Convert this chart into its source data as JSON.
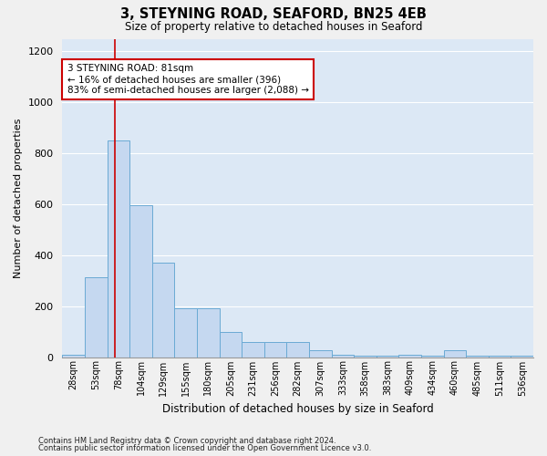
{
  "title": "3, STEYNING ROAD, SEAFORD, BN25 4EB",
  "subtitle": "Size of property relative to detached houses in Seaford",
  "xlabel": "Distribution of detached houses by size in Seaford",
  "ylabel": "Number of detached properties",
  "footnote1": "Contains HM Land Registry data © Crown copyright and database right 2024.",
  "footnote2": "Contains public sector information licensed under the Open Government Licence v3.0.",
  "bar_labels": [
    "28sqm",
    "53sqm",
    "78sqm",
    "104sqm",
    "129sqm",
    "155sqm",
    "180sqm",
    "205sqm",
    "231sqm",
    "256sqm",
    "282sqm",
    "307sqm",
    "333sqm",
    "358sqm",
    "383sqm",
    "409sqm",
    "434sqm",
    "460sqm",
    "485sqm",
    "511sqm",
    "536sqm"
  ],
  "bar_values": [
    8,
    315,
    850,
    595,
    370,
    190,
    190,
    100,
    58,
    58,
    58,
    28,
    8,
    4,
    4,
    8,
    4,
    28,
    4,
    4,
    4
  ],
  "bar_color": "#c5d8f0",
  "bar_edge_color": "#6aaad4",
  "bg_color": "#dce8f5",
  "grid_color": "#ffffff",
  "vline_color": "#cc0000",
  "vline_pos": 1.85,
  "annotation_text": "3 STEYNING ROAD: 81sqm\n← 16% of detached houses are smaller (396)\n83% of semi-detached houses are larger (2,088) →",
  "annotation_box_edgecolor": "#cc0000",
  "ylim": [
    0,
    1250
  ],
  "yticks": [
    0,
    200,
    400,
    600,
    800,
    1000,
    1200
  ],
  "fig_bg": "#f0f0f0"
}
